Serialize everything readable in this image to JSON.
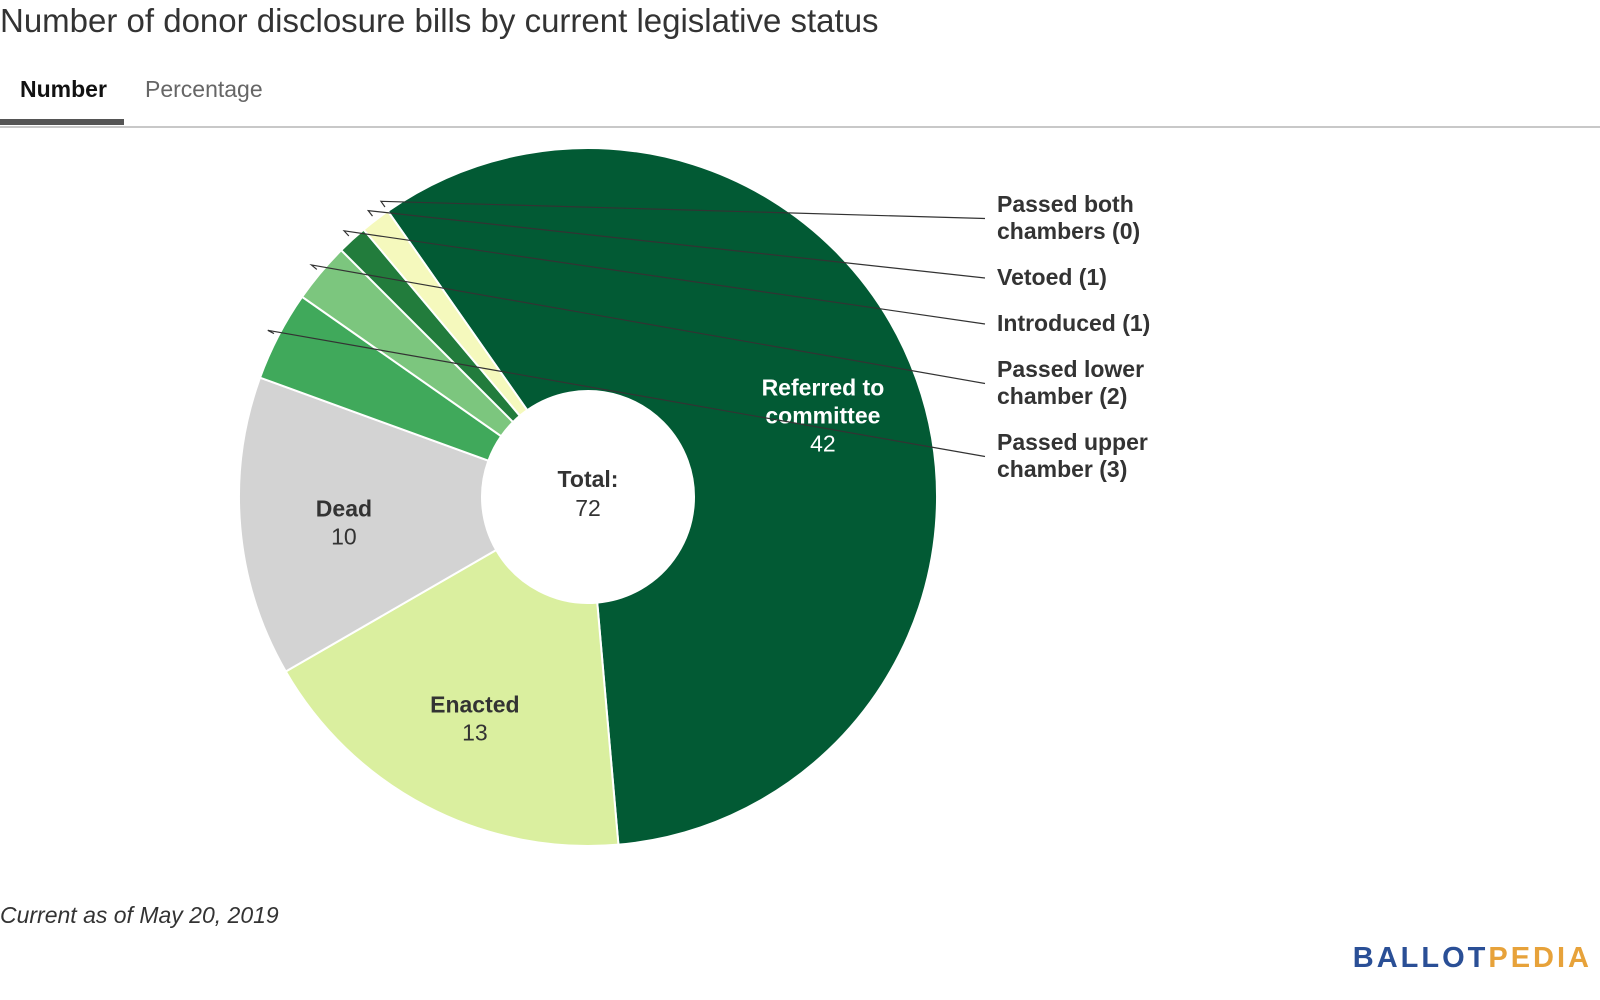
{
  "title": "Number of donor disclosure bills by current legislative status",
  "tabs": [
    {
      "label": "Number",
      "active": true
    },
    {
      "label": "Percentage",
      "active": false
    }
  ],
  "chart_data": {
    "type": "pie",
    "donut": true,
    "center_label": "Total:",
    "total": 72,
    "slices": [
      {
        "name": "Referred to committee",
        "value": 42,
        "color": "#025a34",
        "label_lines": [
          "Referred to",
          "committee"
        ],
        "label_color": "#ffffff",
        "inside": true
      },
      {
        "name": "Enacted",
        "value": 13,
        "color": "#daef9f",
        "label_lines": [
          "Enacted"
        ],
        "label_color": "#333333",
        "inside": true
      },
      {
        "name": "Dead",
        "value": 10,
        "color": "#d3d3d3",
        "label_lines": [
          "Dead"
        ],
        "label_color": "#333333",
        "inside": true
      },
      {
        "name": "Passed upper chamber",
        "value": 3,
        "color": "#40a95b",
        "label_lines": [
          "Passed upper",
          "chamber (3)"
        ],
        "inside": false
      },
      {
        "name": "Passed lower chamber",
        "value": 2,
        "color": "#7cc67e",
        "label_lines": [
          "Passed lower",
          "chamber (2)"
        ],
        "inside": false
      },
      {
        "name": "Introduced",
        "value": 1,
        "color": "#227c3c",
        "label_lines": [
          "Introduced (1)"
        ],
        "inside": false
      },
      {
        "name": "Vetoed",
        "value": 1,
        "color": "#f5f9bd",
        "label_lines": [
          "Vetoed (1)"
        ],
        "inside": false
      },
      {
        "name": "Passed both chambers",
        "value": 0,
        "color": "#a3d9a0",
        "label_lines": [
          "Passed both",
          "chambers (0)"
        ],
        "inside": false
      }
    ]
  },
  "footnote": "Current as of May 20, 2019",
  "logo": {
    "part1": "BALLOT",
    "part2": "PEDIA"
  }
}
